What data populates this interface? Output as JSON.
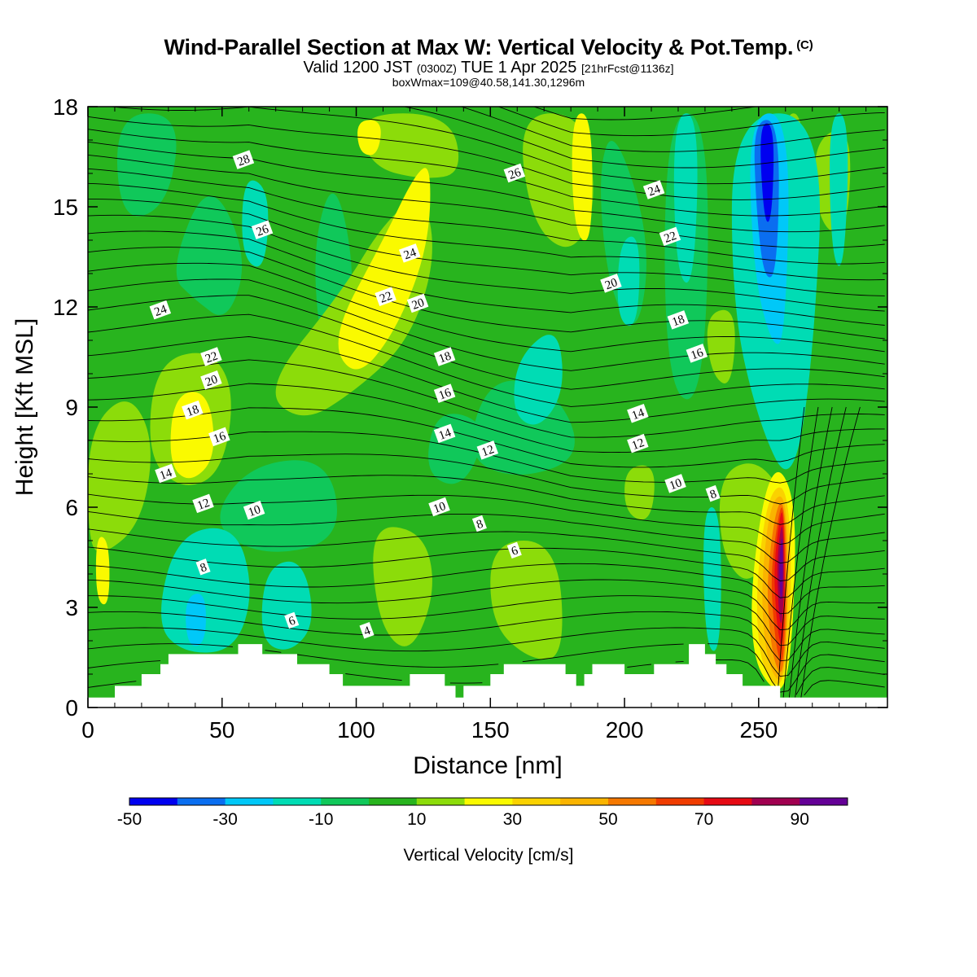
{
  "header": {
    "title": "Wind-Parallel Section at Max W: Vertical Velocity & Pot.Temp.",
    "copyright": "(C)",
    "valid_prefix": "Valid 1200 JST",
    "valid_utc": "(0300Z)",
    "valid_date": "TUE 1 Apr 2025",
    "forecast": "[21hrFcst@1136z]",
    "boxwmax": "boxWmax=109@40.58,141.30,1296m"
  },
  "chart_data": {
    "type": "heatmap",
    "xlabel": "Distance [nm]",
    "ylabel": "Height [Kft MSL]",
    "xlim": [
      0,
      298
    ],
    "ylim": [
      0,
      18
    ],
    "xticks": [
      0,
      50,
      100,
      150,
      200,
      250
    ],
    "yticks": [
      0,
      3,
      6,
      9,
      12,
      15,
      18
    ],
    "colorbar": {
      "label": "Vertical Velocity [cm/s]",
      "levels": [
        -50,
        -40,
        -30,
        -20,
        -10,
        0,
        10,
        20,
        30,
        40,
        50,
        60,
        70,
        80,
        90,
        100
      ],
      "tick_labels": [
        "-50",
        "-30",
        "-10",
        "10",
        "30",
        "50",
        "70",
        "90"
      ],
      "colors": [
        "#0000f0",
        "#0a6ef0",
        "#00c8f8",
        "#00dcb4",
        "#10c85a",
        "#28b41e",
        "#8cdc0a",
        "#fafa00",
        "#fad200",
        "#fab400",
        "#f57800",
        "#f03c00",
        "#e60a14",
        "#a00050",
        "#640096"
      ]
    },
    "background_color": "#28b41e",
    "velocity_features": [
      {
        "x": 259,
        "y": 4.3,
        "w_cm_s": 109,
        "kind": "max updraft"
      },
      {
        "x": 257,
        "y": 15.5,
        "w_cm_s": -45,
        "kind": "downdraft column"
      },
      {
        "x": 125,
        "y": 13.5,
        "w_cm_s": 30,
        "kind": "updraft band"
      },
      {
        "x": 40,
        "y": 8.5,
        "w_cm_s": 30,
        "kind": "updraft"
      },
      {
        "x": 37,
        "y": 2.3,
        "w_cm_s": -30,
        "kind": "downdraft"
      },
      {
        "x": 3,
        "y": 4.5,
        "w_cm_s": 30,
        "kind": "updraft"
      },
      {
        "x": 183,
        "y": 16.5,
        "w_cm_s": 30,
        "kind": "updraft"
      }
    ],
    "theta_contour_labels": [
      {
        "text": "28",
        "x": 58,
        "y": 16.4
      },
      {
        "text": "26",
        "x": 65,
        "y": 14.3
      },
      {
        "text": "24",
        "x": 27,
        "y": 11.9
      },
      {
        "text": "22",
        "x": 46,
        "y": 10.5
      },
      {
        "text": "20",
        "x": 46,
        "y": 9.8
      },
      {
        "text": "18",
        "x": 39,
        "y": 8.9
      },
      {
        "text": "16",
        "x": 49,
        "y": 8.1
      },
      {
        "text": "14",
        "x": 29,
        "y": 7.0
      },
      {
        "text": "12",
        "x": 43,
        "y": 6.1
      },
      {
        "text": "10",
        "x": 62,
        "y": 5.9
      },
      {
        "text": "8",
        "x": 43,
        "y": 4.2
      },
      {
        "text": "6",
        "x": 76,
        "y": 2.6
      },
      {
        "text": "4",
        "x": 104,
        "y": 2.3
      },
      {
        "text": "24",
        "x": 120,
        "y": 13.6
      },
      {
        "text": "22",
        "x": 111,
        "y": 12.3
      },
      {
        "text": "20",
        "x": 123,
        "y": 12.1
      },
      {
        "text": "26",
        "x": 159,
        "y": 16.0
      },
      {
        "text": "18",
        "x": 133,
        "y": 10.5
      },
      {
        "text": "16",
        "x": 133,
        "y": 9.4
      },
      {
        "text": "14",
        "x": 133,
        "y": 8.2
      },
      {
        "text": "12",
        "x": 149,
        "y": 7.7
      },
      {
        "text": "10",
        "x": 131,
        "y": 6.0
      },
      {
        "text": "8",
        "x": 146,
        "y": 5.5
      },
      {
        "text": "6",
        "x": 159,
        "y": 4.7
      },
      {
        "text": "24",
        "x": 211,
        "y": 15.5
      },
      {
        "text": "22",
        "x": 217,
        "y": 14.1
      },
      {
        "text": "20",
        "x": 195,
        "y": 12.7
      },
      {
        "text": "18",
        "x": 220,
        "y": 11.6
      },
      {
        "text": "16",
        "x": 227,
        "y": 10.6
      },
      {
        "text": "14",
        "x": 205,
        "y": 8.8
      },
      {
        "text": "12",
        "x": 205,
        "y": 7.9
      },
      {
        "text": "10",
        "x": 219,
        "y": 6.7
      },
      {
        "text": "8",
        "x": 233,
        "y": 6.4
      }
    ],
    "terrain": [
      [
        0,
        0.3
      ],
      [
        10,
        0.3
      ],
      [
        10,
        0.65
      ],
      [
        20,
        0.65
      ],
      [
        20,
        1.0
      ],
      [
        27,
        1.0
      ],
      [
        27,
        1.3
      ],
      [
        30,
        1.3
      ],
      [
        30,
        1.6
      ],
      [
        56,
        1.6
      ],
      [
        56,
        1.9
      ],
      [
        65,
        1.9
      ],
      [
        65,
        1.6
      ],
      [
        78,
        1.6
      ],
      [
        78,
        1.3
      ],
      [
        90,
        1.3
      ],
      [
        90,
        1.0
      ],
      [
        95,
        1.0
      ],
      [
        95,
        0.65
      ],
      [
        120,
        0.65
      ],
      [
        120,
        1.0
      ],
      [
        133,
        1.0
      ],
      [
        133,
        0.65
      ],
      [
        137,
        0.65
      ],
      [
        137,
        0.3
      ],
      [
        140,
        0.3
      ],
      [
        140,
        0.65
      ],
      [
        150,
        0.65
      ],
      [
        150,
        1.0
      ],
      [
        155,
        1.0
      ],
      [
        155,
        1.3
      ],
      [
        178,
        1.3
      ],
      [
        178,
        1.0
      ],
      [
        182,
        1.0
      ],
      [
        182,
        0.65
      ],
      [
        185,
        0.65
      ],
      [
        185,
        1.0
      ],
      [
        188,
        1.0
      ],
      [
        188,
        1.3
      ],
      [
        200,
        1.3
      ],
      [
        200,
        1.0
      ],
      [
        211,
        1.0
      ],
      [
        211,
        1.3
      ],
      [
        224,
        1.3
      ],
      [
        224,
        1.9
      ],
      [
        230,
        1.9
      ],
      [
        230,
        1.6
      ],
      [
        234,
        1.6
      ],
      [
        234,
        1.3
      ],
      [
        238,
        1.3
      ],
      [
        238,
        1.0
      ],
      [
        244,
        1.0
      ],
      [
        244,
        0.65
      ],
      [
        258,
        0.65
      ],
      [
        258,
        0.3
      ],
      [
        298,
        0.3
      ]
    ]
  }
}
